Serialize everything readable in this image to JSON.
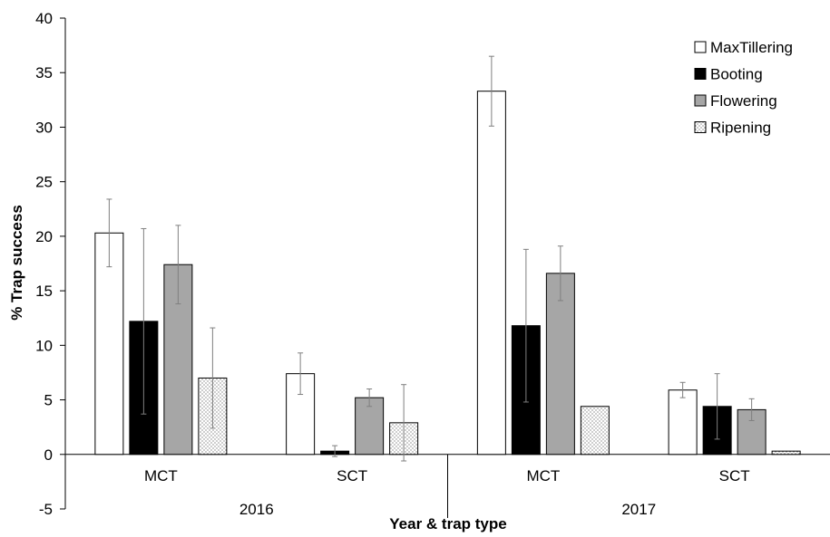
{
  "chart_data": {
    "type": "bar",
    "xlabel": "Year & trap type",
    "ylabel": "% Trap success",
    "ylim": [
      -5,
      40
    ],
    "yticks": [
      -5,
      0,
      5,
      10,
      15,
      20,
      25,
      30,
      35,
      40
    ],
    "grid": false,
    "legend_position": "top-right",
    "groups": [
      {
        "label": "2016",
        "categories": [
          "MCT",
          "SCT"
        ]
      },
      {
        "label": "2017",
        "categories": [
          "MCT",
          "SCT"
        ]
      }
    ],
    "categories": [
      "MCT",
      "SCT",
      "MCT",
      "SCT"
    ],
    "series": [
      {
        "name": "MaxTillering",
        "style": "white",
        "values": [
          20.3,
          7.4,
          33.3,
          5.9
        ],
        "errors": [
          3.1,
          1.9,
          3.2,
          0.7
        ]
      },
      {
        "name": "Booting",
        "style": "black",
        "values": [
          12.2,
          0.3,
          11.8,
          4.4
        ],
        "errors": [
          8.5,
          0.5,
          7.0,
          3.0
        ]
      },
      {
        "name": "Flowering",
        "style": "gray",
        "values": [
          17.4,
          5.2,
          16.6,
          4.1
        ],
        "errors": [
          3.6,
          0.8,
          2.5,
          1.0
        ]
      },
      {
        "name": "Ripening",
        "style": "dotted",
        "values": [
          7.0,
          2.9,
          4.4,
          0.3
        ],
        "errors": [
          4.6,
          3.5,
          0,
          0
        ]
      }
    ],
    "colors": {
      "white": "#ffffff",
      "black": "#000000",
      "gray": "#a6a6a6",
      "dotted": "#ffffff",
      "outline": "#000000",
      "error_bar": "#7f7f7f"
    }
  }
}
